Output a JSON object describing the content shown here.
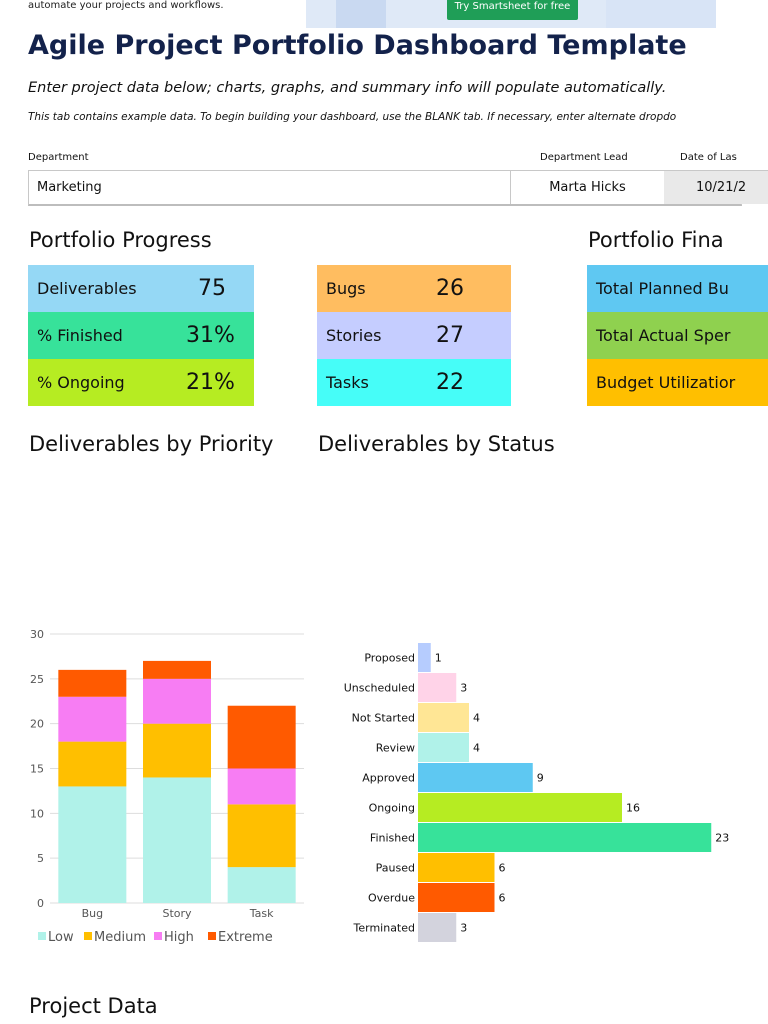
{
  "banner": {
    "text": "automate your projects and workflows.",
    "cta_label": "Try Smartsheet for free"
  },
  "title": "Agile Project Portfolio Dashboard Template",
  "subtitle": "Enter project data below; charts, graphs, and summary info will populate automatically.",
  "note": "This tab contains example data.  To begin building your dashboard, use the BLANK tab. If necessary, enter alternate dropdo",
  "department": {
    "department_label": "Department",
    "department_value": "Marketing",
    "lead_label": "Department Lead",
    "lead_value": "Marta Hicks",
    "date_label": "Date of Las",
    "date_value": "10/21/2"
  },
  "sections": {
    "progress": "Portfolio Progress",
    "finance": "Portfolio Fina",
    "by_priority": "Deliverables by Priority",
    "by_status": "Deliverables by Status",
    "project_data": "Project Data"
  },
  "progress_tiles": [
    {
      "label": "Deliverables",
      "value": "75",
      "color": "#95d8f5"
    },
    {
      "label": "% Finished",
      "value": "31%",
      "color": "#37e29a"
    },
    {
      "label": "% Ongoing",
      "value": "21%",
      "color": "#b6ec22"
    }
  ],
  "type_tiles": [
    {
      "label": "Bugs",
      "value": "26",
      "color": "#ffbd60"
    },
    {
      "label": "Stories",
      "value": "27",
      "color": "#c5cdff"
    },
    {
      "label": "Tasks",
      "value": "22",
      "color": "#46fdf8"
    }
  ],
  "finance_tiles": [
    {
      "label": "Total Planned Bu",
      "color": "#5fc8f2"
    },
    {
      "label": "Total Actual Sper",
      "color": "#8fd14f"
    },
    {
      "label": "Budget Utilizatior",
      "color": "#ffbf00"
    }
  ],
  "chart_data": [
    {
      "type": "bar",
      "stacked": true,
      "categories": [
        "Bug",
        "Story",
        "Task"
      ],
      "series": [
        {
          "name": "Low",
          "values": [
            13,
            14,
            4
          ],
          "color": "#b0f2e9"
        },
        {
          "name": "Medium",
          "values": [
            5,
            6,
            7
          ],
          "color": "#ffbf00"
        },
        {
          "name": "High",
          "values": [
            5,
            5,
            4
          ],
          "color": "#f77df3"
        },
        {
          "name": "Extreme",
          "values": [
            3,
            2,
            7
          ],
          "color": "#ff5a00"
        }
      ],
      "ylim": [
        0,
        30
      ],
      "yticks": [
        "0",
        "5",
        "10",
        "15",
        "20",
        "25",
        "30"
      ],
      "grid": true,
      "legend": "bottom"
    },
    {
      "type": "bar",
      "orientation": "horizontal",
      "categories": [
        "Proposed",
        "Unscheduled",
        "Not Started",
        "Review",
        "Approved",
        "Ongoing",
        "Finished",
        "Paused",
        "Overdue",
        "Terminated"
      ],
      "values": [
        1,
        3,
        4,
        4,
        9,
        16,
        23,
        6,
        6,
        3
      ],
      "colors": [
        "#b6ccfe",
        "#ffd3e8",
        "#ffe695",
        "#b0f2e9",
        "#5ec8f2",
        "#b6ec22",
        "#37e29a",
        "#ffbf00",
        "#ff5a00",
        "#d3d3dd"
      ],
      "data_labels": true
    }
  ]
}
